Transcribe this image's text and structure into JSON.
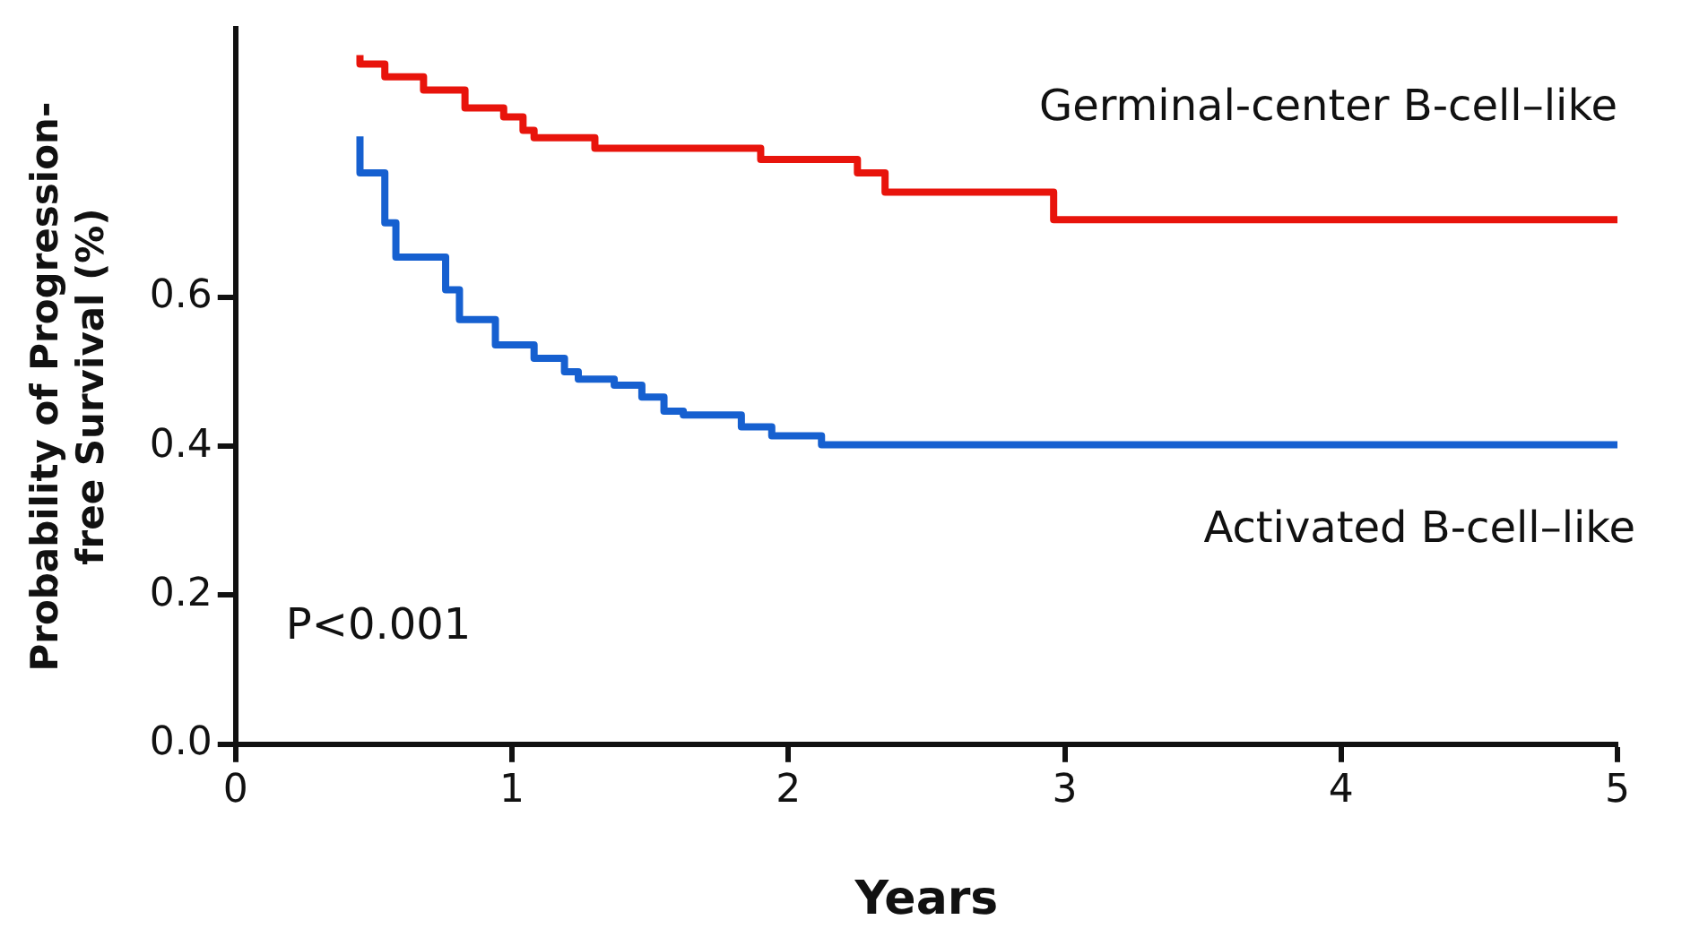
{
  "chart_data": {
    "type": "step",
    "xlabel": "Years",
    "ylabel": "Probability of Progression-free Survival (%)",
    "xlim": [
      0,
      5
    ],
    "xticks": [
      0,
      1,
      2,
      3,
      4,
      5
    ],
    "ylim": [
      0,
      0.96
    ],
    "yticks": [
      {
        "value": 0,
        "label": "0.0"
      },
      {
        "value": 0.2,
        "label": "0.2"
      },
      {
        "value": 0.4,
        "label": "0.4"
      },
      {
        "value": 0.6,
        "label": "0.6"
      }
    ],
    "grid": false,
    "legend": false,
    "marker": "none",
    "line_style": "solid",
    "annotations": [
      "P<0.001"
    ],
    "series": [
      {
        "name": "Germinal-center B-cell–like",
        "color": "#e8140c",
        "x": [
          0.45,
          0.54,
          0.68,
          0.83,
          0.97,
          1.04,
          1.08,
          1.3,
          1.9,
          2.25,
          2.35,
          2.96,
          4.37,
          5
        ],
        "values": [
          0.925,
          0.913,
          0.896,
          0.878,
          0.854,
          0.842,
          0.824,
          0.814,
          0.8,
          0.785,
          0.767,
          0.741,
          0.704,
          0.704
        ]
      },
      {
        "name": "Activated B-cell–like",
        "color": "#1660d0",
        "x": [
          0.45,
          0.54,
          0.58,
          0.76,
          0.81,
          0.94,
          1.08,
          1.19,
          1.24,
          1.37,
          1.47,
          1.55,
          1.62,
          1.83,
          1.94,
          2.12,
          2.27,
          5
        ],
        "values": [
          0.816,
          0.767,
          0.7,
          0.654,
          0.61,
          0.57,
          0.536,
          0.518,
          0.5,
          0.49,
          0.482,
          0.466,
          0.447,
          0.442,
          0.426,
          0.414,
          0.402,
          0.402
        ]
      }
    ]
  }
}
